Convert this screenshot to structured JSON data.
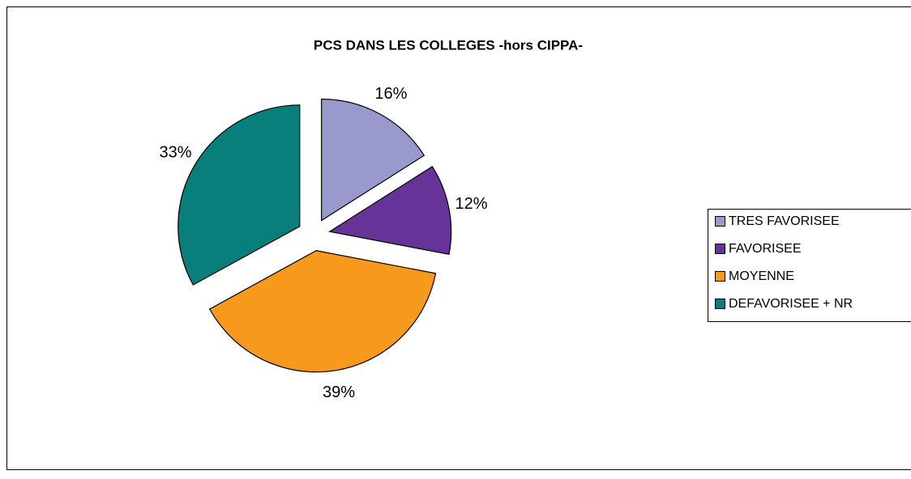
{
  "chart_data": {
    "type": "pie",
    "title": "PCS  DANS LES  COLLEGES -hors CIPPA-",
    "categories": [
      "TRES FAVORISEE",
      "FAVORISEE",
      "MOYENNE",
      "DEFAVORISEE + NR"
    ],
    "values": [
      16,
      12,
      39,
      33
    ],
    "value_labels": [
      "16%",
      "12%",
      "39%",
      "33%"
    ],
    "colors": [
      "#9999cc",
      "#663399",
      "#f7991c",
      "#087f7b"
    ],
    "exploded": true,
    "legend": "right"
  }
}
